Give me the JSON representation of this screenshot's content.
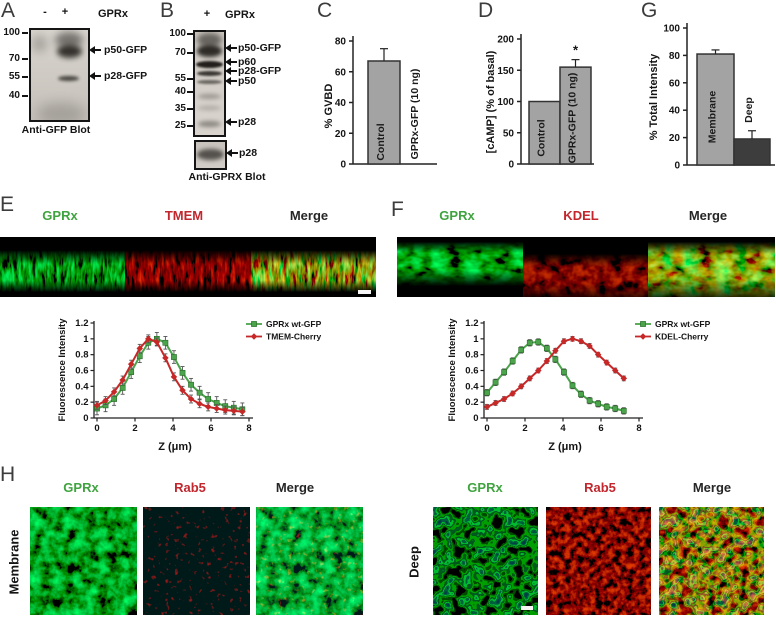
{
  "panels": {
    "A": {
      "letter": "A",
      "lane_minus": "-",
      "lane_plus": "+",
      "treatment": "GPRx",
      "mw": [
        "100",
        "70",
        "55",
        "40"
      ],
      "bands": [
        "p50-GFP",
        "p28-GFP"
      ],
      "caption": "Anti-GFP Blot"
    },
    "B": {
      "letter": "B",
      "lane_plus": "+",
      "treatment": "GPRx",
      "mw": [
        "100",
        "70",
        "55",
        "40",
        "35",
        "25"
      ],
      "bands": [
        "p50-GFP",
        "p60",
        "p28-GFP",
        "p50",
        "p28"
      ],
      "lower_band": "p28",
      "caption": "Anti-GPRX Blot"
    },
    "C": {
      "letter": "C"
    },
    "D": {
      "letter": "D"
    },
    "E": {
      "letter": "E",
      "channels": [
        "GPRx",
        "TMEM",
        "Merge"
      ]
    },
    "F": {
      "letter": "F",
      "channels": [
        "GPRx",
        "KDEL",
        "Merge"
      ]
    },
    "G": {
      "letter": "G"
    },
    "H": {
      "letter": "H",
      "channels": [
        "GPRx",
        "Rab5",
        "Merge"
      ],
      "row_left": "Membrane",
      "row_right": "Deep"
    }
  },
  "colors": {
    "green_label": "#3fa33f",
    "red_label": "#c1272d",
    "dark_label": "#262626",
    "bar_gray": "#a3a3a3",
    "bar_dark": "#3d3d3d",
    "series_green": "#4ba44b",
    "series_red": "#c62828"
  },
  "chart_data": [
    {
      "id": "C",
      "type": "bar",
      "ylabel": "% GVBD",
      "ylim": [
        0,
        80
      ],
      "yticks": [
        "0",
        "20",
        "40",
        "60",
        "80"
      ],
      "categories": [
        "Control",
        "GPRx-GFP (10 ng)"
      ],
      "values": [
        67,
        0
      ],
      "errors": [
        8,
        0
      ],
      "bar_colors": [
        "#a3a3a3",
        "#a3a3a3"
      ],
      "significance": [
        "",
        ""
      ]
    },
    {
      "id": "D",
      "type": "bar",
      "ylabel": "[cAMP] (% of basal)",
      "ylim": [
        0,
        200
      ],
      "yticks": [
        "0",
        "50",
        "100",
        "150",
        "200"
      ],
      "categories": [
        "Control",
        "GPRx-GFP (10 ng)"
      ],
      "values": [
        100,
        155
      ],
      "errors": [
        0,
        12
      ],
      "bar_colors": [
        "#a3a3a3",
        "#a3a3a3"
      ],
      "significance": [
        "",
        "*"
      ]
    },
    {
      "id": "G",
      "type": "bar",
      "ylabel": "% Total Intensity",
      "ylim": [
        0,
        100
      ],
      "yticks": [
        "0",
        "20",
        "40",
        "60",
        "80",
        "100"
      ],
      "categories": [
        "Membrane",
        "Deep"
      ],
      "values": [
        81,
        19
      ],
      "errors": [
        3,
        6
      ],
      "bar_colors": [
        "#a3a3a3",
        "#3d3d3d"
      ],
      "significance": [
        "",
        ""
      ]
    },
    {
      "id": "E",
      "type": "line",
      "xlabel": "Z (μm)",
      "ylabel": "Fluorescence Intensity",
      "xlim": [
        0,
        8
      ],
      "ylim": [
        0,
        1.2
      ],
      "xticks": [
        "0",
        "2",
        "4",
        "6",
        "8"
      ],
      "yticks": [
        "0",
        "0.2",
        "0.4",
        "0.6",
        "0.8",
        "1",
        "1.2"
      ],
      "legend_position": "top-right",
      "series": [
        {
          "name": "GPRx wt-GFP",
          "color": "#4ba44b",
          "marker": "square",
          "err": 0.08,
          "x": [
            0,
            0.45,
            0.9,
            1.35,
            1.8,
            2.25,
            2.7,
            3.15,
            3.6,
            4.05,
            4.5,
            4.95,
            5.4,
            5.85,
            6.3,
            6.75,
            7.2,
            7.65
          ],
          "y": [
            0.12,
            0.16,
            0.24,
            0.38,
            0.58,
            0.78,
            0.95,
            1.0,
            0.95,
            0.77,
            0.57,
            0.42,
            0.32,
            0.24,
            0.19,
            0.15,
            0.13,
            0.11
          ]
        },
        {
          "name": "TMEM-Cherry",
          "color": "#c62828",
          "marker": "diamond",
          "err": 0.05,
          "x": [
            0,
            0.45,
            0.9,
            1.35,
            1.8,
            2.25,
            2.7,
            3.15,
            3.6,
            4.05,
            4.5,
            4.95,
            5.4,
            5.85,
            6.3,
            6.75,
            7.2,
            7.65
          ],
          "y": [
            0.16,
            0.22,
            0.33,
            0.48,
            0.68,
            0.88,
            1.0,
            0.96,
            0.76,
            0.52,
            0.35,
            0.24,
            0.18,
            0.14,
            0.12,
            0.1,
            0.09,
            0.08
          ]
        }
      ]
    },
    {
      "id": "F",
      "type": "line",
      "xlabel": "Z (μm)",
      "ylabel": "Fluorescence Intensity",
      "xlim": [
        0,
        8
      ],
      "ylim": [
        0,
        1.2
      ],
      "xticks": [
        "0",
        "2",
        "4",
        "6",
        "8"
      ],
      "yticks": [
        "0",
        "0.2",
        "0.4",
        "0.6",
        "0.8",
        "1",
        "1.2"
      ],
      "legend_position": "top-right",
      "series": [
        {
          "name": "GPRx wt-GFP",
          "color": "#4ba44b",
          "marker": "square",
          "err": 0.04,
          "x": [
            0,
            0.45,
            0.9,
            1.35,
            1.8,
            2.25,
            2.7,
            3.15,
            3.6,
            4.05,
            4.5,
            4.95,
            5.4,
            5.85,
            6.3,
            6.75,
            7.2
          ],
          "y": [
            0.32,
            0.45,
            0.58,
            0.72,
            0.86,
            0.95,
            0.96,
            0.88,
            0.74,
            0.58,
            0.41,
            0.3,
            0.22,
            0.18,
            0.14,
            0.12,
            0.09
          ]
        },
        {
          "name": "KDEL-Cherry",
          "color": "#c62828",
          "marker": "diamond",
          "err": 0.03,
          "x": [
            0,
            0.45,
            0.9,
            1.35,
            1.8,
            2.25,
            2.7,
            3.15,
            3.6,
            4.05,
            4.5,
            4.95,
            5.4,
            5.85,
            6.3,
            6.75,
            7.2
          ],
          "y": [
            0.14,
            0.19,
            0.24,
            0.31,
            0.4,
            0.5,
            0.6,
            0.72,
            0.85,
            0.97,
            1.0,
            0.97,
            0.91,
            0.8,
            0.7,
            0.6,
            0.5
          ]
        }
      ]
    }
  ]
}
